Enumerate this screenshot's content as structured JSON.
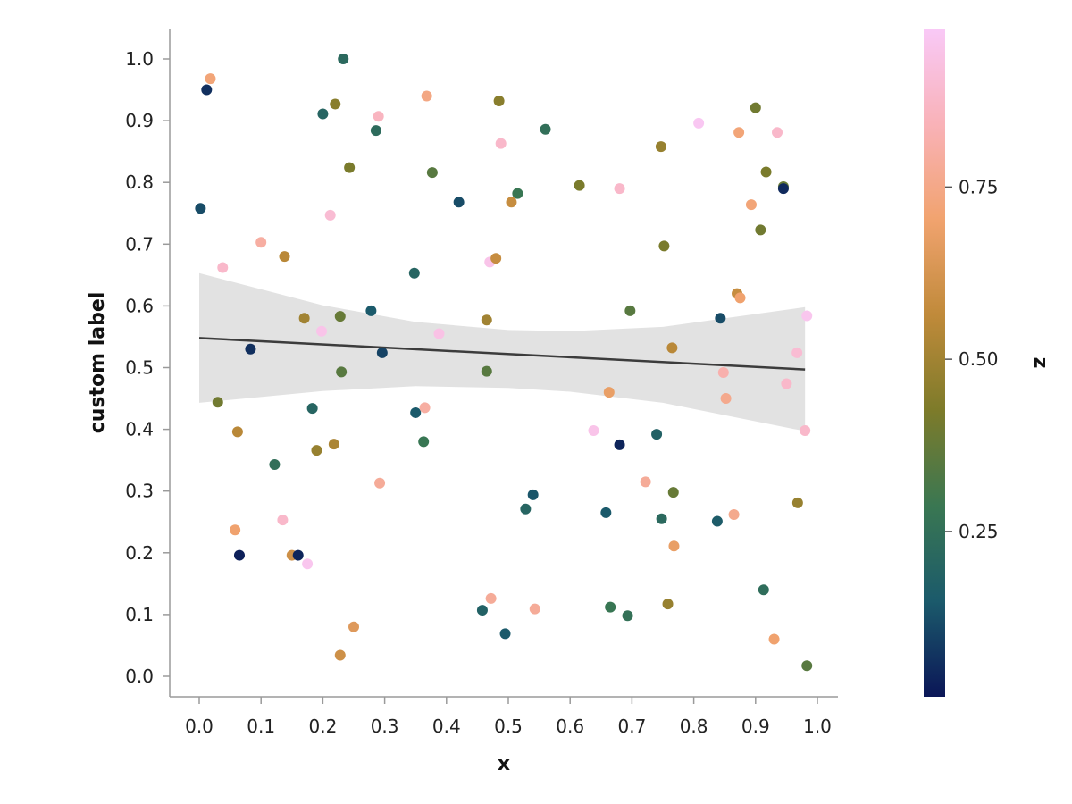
{
  "chart_data": {
    "type": "scatter",
    "xlabel": "x",
    "ylabel": "custom label",
    "colorbar_label": "z",
    "xlim": [
      -0.05,
      1.03
    ],
    "ylim": [
      -0.03,
      1.05
    ],
    "x_ticks": [
      "0.0",
      "0.1",
      "0.2",
      "0.3",
      "0.4",
      "0.5",
      "0.6",
      "0.7",
      "0.8",
      "0.9",
      "1.0"
    ],
    "y_ticks": [
      "0.0",
      "0.1",
      "0.2",
      "0.3",
      "0.4",
      "0.5",
      "0.6",
      "0.7",
      "0.8",
      "0.9",
      "1.0"
    ],
    "colorbar_ticks": [
      "0.25",
      "0.50",
      "0.75"
    ],
    "colorbar_range": [
      0.01,
      0.98
    ],
    "grid": false,
    "colormap": [
      "#0b1657",
      "#1b5a6b",
      "#3a7752",
      "#7d7b2a",
      "#c08a3a",
      "#f1a36f",
      "#f9b2b8",
      "#f9c9f7"
    ],
    "regression": {
      "color": "#3c3c3c",
      "band_color": "#e2e2e2",
      "line": [
        [
          0.0,
          0.548
        ],
        [
          0.98,
          0.497
        ]
      ],
      "band_upper": [
        [
          0.0,
          0.653
        ],
        [
          0.2,
          0.601
        ],
        [
          0.35,
          0.574
        ],
        [
          0.5,
          0.561
        ],
        [
          0.6,
          0.559
        ],
        [
          0.75,
          0.566
        ],
        [
          0.98,
          0.598
        ]
      ],
      "band_lower": [
        [
          0.0,
          0.443
        ],
        [
          0.2,
          0.462
        ],
        [
          0.35,
          0.47
        ],
        [
          0.5,
          0.467
        ],
        [
          0.6,
          0.461
        ],
        [
          0.75,
          0.443
        ],
        [
          0.98,
          0.397
        ]
      ]
    },
    "points": [
      {
        "x": 0.002,
        "y": 0.758,
        "z": 0.12
      },
      {
        "x": 0.012,
        "y": 0.95,
        "z": 0.06
      },
      {
        "x": 0.018,
        "y": 0.968,
        "z": 0.72
      },
      {
        "x": 0.03,
        "y": 0.444,
        "z": 0.4
      },
      {
        "x": 0.038,
        "y": 0.662,
        "z": 0.88
      },
      {
        "x": 0.058,
        "y": 0.237,
        "z": 0.7
      },
      {
        "x": 0.062,
        "y": 0.396,
        "z": 0.55
      },
      {
        "x": 0.065,
        "y": 0.196,
        "z": 0.03
      },
      {
        "x": 0.083,
        "y": 0.53,
        "z": 0.06
      },
      {
        "x": 0.1,
        "y": 0.703,
        "z": 0.8
      },
      {
        "x": 0.122,
        "y": 0.343,
        "z": 0.25
      },
      {
        "x": 0.135,
        "y": 0.253,
        "z": 0.88
      },
      {
        "x": 0.138,
        "y": 0.68,
        "z": 0.55
      },
      {
        "x": 0.15,
        "y": 0.196,
        "z": 0.6
      },
      {
        "x": 0.16,
        "y": 0.196,
        "z": 0.04
      },
      {
        "x": 0.17,
        "y": 0.58,
        "z": 0.5
      },
      {
        "x": 0.175,
        "y": 0.182,
        "z": 0.96
      },
      {
        "x": 0.183,
        "y": 0.434,
        "z": 0.2
      },
      {
        "x": 0.19,
        "y": 0.366,
        "z": 0.48
      },
      {
        "x": 0.198,
        "y": 0.559,
        "z": 0.95
      },
      {
        "x": 0.2,
        "y": 0.911,
        "z": 0.2
      },
      {
        "x": 0.212,
        "y": 0.747,
        "z": 0.9
      },
      {
        "x": 0.218,
        "y": 0.376,
        "z": 0.52
      },
      {
        "x": 0.22,
        "y": 0.927,
        "z": 0.45
      },
      {
        "x": 0.228,
        "y": 0.583,
        "z": 0.38
      },
      {
        "x": 0.228,
        "y": 0.034,
        "z": 0.6
      },
      {
        "x": 0.23,
        "y": 0.493,
        "z": 0.35
      },
      {
        "x": 0.233,
        "y": 1.0,
        "z": 0.22
      },
      {
        "x": 0.243,
        "y": 0.824,
        "z": 0.42
      },
      {
        "x": 0.25,
        "y": 0.08,
        "z": 0.65
      },
      {
        "x": 0.278,
        "y": 0.592,
        "z": 0.15
      },
      {
        "x": 0.286,
        "y": 0.884,
        "z": 0.23
      },
      {
        "x": 0.29,
        "y": 0.907,
        "z": 0.86
      },
      {
        "x": 0.292,
        "y": 0.313,
        "z": 0.78
      },
      {
        "x": 0.296,
        "y": 0.524,
        "z": 0.1
      },
      {
        "x": 0.348,
        "y": 0.653,
        "z": 0.2
      },
      {
        "x": 0.35,
        "y": 0.427,
        "z": 0.15
      },
      {
        "x": 0.363,
        "y": 0.38,
        "z": 0.28
      },
      {
        "x": 0.365,
        "y": 0.435,
        "z": 0.8
      },
      {
        "x": 0.368,
        "y": 0.94,
        "z": 0.74
      },
      {
        "x": 0.377,
        "y": 0.816,
        "z": 0.35
      },
      {
        "x": 0.388,
        "y": 0.555,
        "z": 0.94
      },
      {
        "x": 0.42,
        "y": 0.768,
        "z": 0.12
      },
      {
        "x": 0.458,
        "y": 0.107,
        "z": 0.18
      },
      {
        "x": 0.465,
        "y": 0.577,
        "z": 0.5
      },
      {
        "x": 0.465,
        "y": 0.494,
        "z": 0.35
      },
      {
        "x": 0.47,
        "y": 0.671,
        "z": 0.95
      },
      {
        "x": 0.472,
        "y": 0.126,
        "z": 0.78
      },
      {
        "x": 0.48,
        "y": 0.677,
        "z": 0.58
      },
      {
        "x": 0.485,
        "y": 0.932,
        "z": 0.45
      },
      {
        "x": 0.488,
        "y": 0.863,
        "z": 0.88
      },
      {
        "x": 0.495,
        "y": 0.069,
        "z": 0.15
      },
      {
        "x": 0.505,
        "y": 0.768,
        "z": 0.58
      },
      {
        "x": 0.515,
        "y": 0.782,
        "z": 0.28
      },
      {
        "x": 0.528,
        "y": 0.271,
        "z": 0.2
      },
      {
        "x": 0.54,
        "y": 0.294,
        "z": 0.14
      },
      {
        "x": 0.543,
        "y": 0.109,
        "z": 0.78
      },
      {
        "x": 0.56,
        "y": 0.886,
        "z": 0.25
      },
      {
        "x": 0.615,
        "y": 0.795,
        "z": 0.42
      },
      {
        "x": 0.638,
        "y": 0.398,
        "z": 0.95
      },
      {
        "x": 0.658,
        "y": 0.265,
        "z": 0.15
      },
      {
        "x": 0.663,
        "y": 0.46,
        "z": 0.68
      },
      {
        "x": 0.665,
        "y": 0.112,
        "z": 0.28
      },
      {
        "x": 0.68,
        "y": 0.79,
        "z": 0.88
      },
      {
        "x": 0.68,
        "y": 0.375,
        "z": 0.04
      },
      {
        "x": 0.693,
        "y": 0.098,
        "z": 0.26
      },
      {
        "x": 0.697,
        "y": 0.592,
        "z": 0.35
      },
      {
        "x": 0.722,
        "y": 0.315,
        "z": 0.78
      },
      {
        "x": 0.74,
        "y": 0.392,
        "z": 0.18
      },
      {
        "x": 0.747,
        "y": 0.858,
        "z": 0.48
      },
      {
        "x": 0.748,
        "y": 0.255,
        "z": 0.22
      },
      {
        "x": 0.752,
        "y": 0.697,
        "z": 0.42
      },
      {
        "x": 0.758,
        "y": 0.117,
        "z": 0.48
      },
      {
        "x": 0.765,
        "y": 0.532,
        "z": 0.55
      },
      {
        "x": 0.767,
        "y": 0.298,
        "z": 0.38
      },
      {
        "x": 0.768,
        "y": 0.211,
        "z": 0.68
      },
      {
        "x": 0.808,
        "y": 0.896,
        "z": 0.97
      },
      {
        "x": 0.838,
        "y": 0.251,
        "z": 0.16
      },
      {
        "x": 0.843,
        "y": 0.58,
        "z": 0.12
      },
      {
        "x": 0.848,
        "y": 0.492,
        "z": 0.82
      },
      {
        "x": 0.852,
        "y": 0.45,
        "z": 0.76
      },
      {
        "x": 0.865,
        "y": 0.262,
        "z": 0.76
      },
      {
        "x": 0.87,
        "y": 0.62,
        "z": 0.58
      },
      {
        "x": 0.873,
        "y": 0.881,
        "z": 0.72
      },
      {
        "x": 0.875,
        "y": 0.613,
        "z": 0.7
      },
      {
        "x": 0.893,
        "y": 0.764,
        "z": 0.72
      },
      {
        "x": 0.9,
        "y": 0.921,
        "z": 0.4
      },
      {
        "x": 0.908,
        "y": 0.723,
        "z": 0.4
      },
      {
        "x": 0.913,
        "y": 0.14,
        "z": 0.24
      },
      {
        "x": 0.917,
        "y": 0.817,
        "z": 0.42
      },
      {
        "x": 0.93,
        "y": 0.06,
        "z": 0.7
      },
      {
        "x": 0.935,
        "y": 0.881,
        "z": 0.88
      },
      {
        "x": 0.945,
        "y": 0.793,
        "z": 0.38
      },
      {
        "x": 0.945,
        "y": 0.79,
        "z": 0.05
      },
      {
        "x": 0.95,
        "y": 0.474,
        "z": 0.88
      },
      {
        "x": 0.967,
        "y": 0.524,
        "z": 0.9
      },
      {
        "x": 0.968,
        "y": 0.281,
        "z": 0.48
      },
      {
        "x": 0.98,
        "y": 0.398,
        "z": 0.88
      },
      {
        "x": 0.983,
        "y": 0.584,
        "z": 0.96
      },
      {
        "x": 0.983,
        "y": 0.017,
        "z": 0.35
      }
    ]
  }
}
